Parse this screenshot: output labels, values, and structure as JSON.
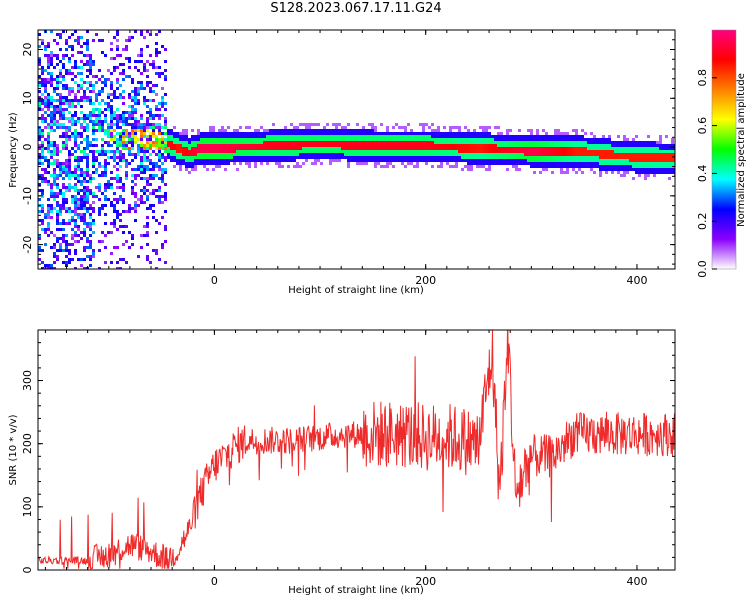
{
  "title": "S128.2023.067.17.11.G24",
  "chart_data": [
    {
      "type": "heatmap",
      "xlabel": "Height of straight line (km)",
      "ylabel": "Frequency (Hz)",
      "xlim": [
        -167,
        436
      ],
      "ylim": [
        -25,
        24
      ],
      "x_ticks": [
        0,
        200,
        400
      ],
      "y_ticks": [
        -20,
        -10,
        0,
        10,
        20
      ],
      "colorbar": {
        "label": "Normalized spectral amplitude",
        "range": [
          0,
          1
        ],
        "ticks": [
          "0.0",
          "0.2",
          "0.4",
          "0.6",
          "0.8"
        ],
        "colors": [
          "#ffffff",
          "#8a00ff",
          "#0000ff",
          "#00ffff",
          "#00ff00",
          "#ffff00",
          "#ff8000",
          "#ff0000",
          "#ff0080"
        ]
      },
      "ridge": {
        "x": [
          -55,
          -45,
          -35,
          -25,
          -15,
          0,
          50,
          100,
          150,
          200,
          250,
          300,
          340,
          380,
          420,
          436
        ],
        "frequency": [
          2,
          1,
          0,
          -1,
          0,
          0,
          0.5,
          1,
          0.5,
          0.5,
          0,
          -0.5,
          -0.5,
          -1.5,
          -2,
          -2
        ],
        "amplitude": [
          0.9,
          0.9,
          0.85,
          0.9,
          0.95,
          0.95,
          0.9,
          0.9,
          0.9,
          0.9,
          0.85,
          0.95,
          0.85,
          0.85,
          0.85,
          0.85
        ]
      }
    },
    {
      "type": "line",
      "xlabel": "Height of straight line (km)",
      "ylabel": "SNR (10 * v/v)",
      "xlim": [
        -167,
        436
      ],
      "ylim": [
        0,
        380
      ],
      "x_ticks": [
        0,
        200,
        400
      ],
      "y_ticks": [
        0,
        100,
        200,
        300
      ],
      "series": [
        {
          "color": "#ee2a2a",
          "x": [
            -167,
            -140,
            -120,
            -100,
            -80,
            -60,
            -45,
            -35,
            -25,
            -15,
            -5,
            0,
            10,
            20,
            30,
            50,
            75,
            100,
            125,
            150,
            175,
            200,
            225,
            250,
            263,
            270,
            278,
            285,
            300,
            320,
            340,
            360,
            380,
            400,
            420,
            436
          ],
          "y": [
            15,
            15,
            15,
            25,
            40,
            30,
            15,
            30,
            60,
            110,
            150,
            165,
            180,
            195,
            205,
            205,
            205,
            210,
            215,
            215,
            215,
            210,
            210,
            200,
            345,
            120,
            370,
            120,
            180,
            180,
            215,
            215,
            215,
            215,
            215,
            215
          ]
        }
      ]
    }
  ]
}
